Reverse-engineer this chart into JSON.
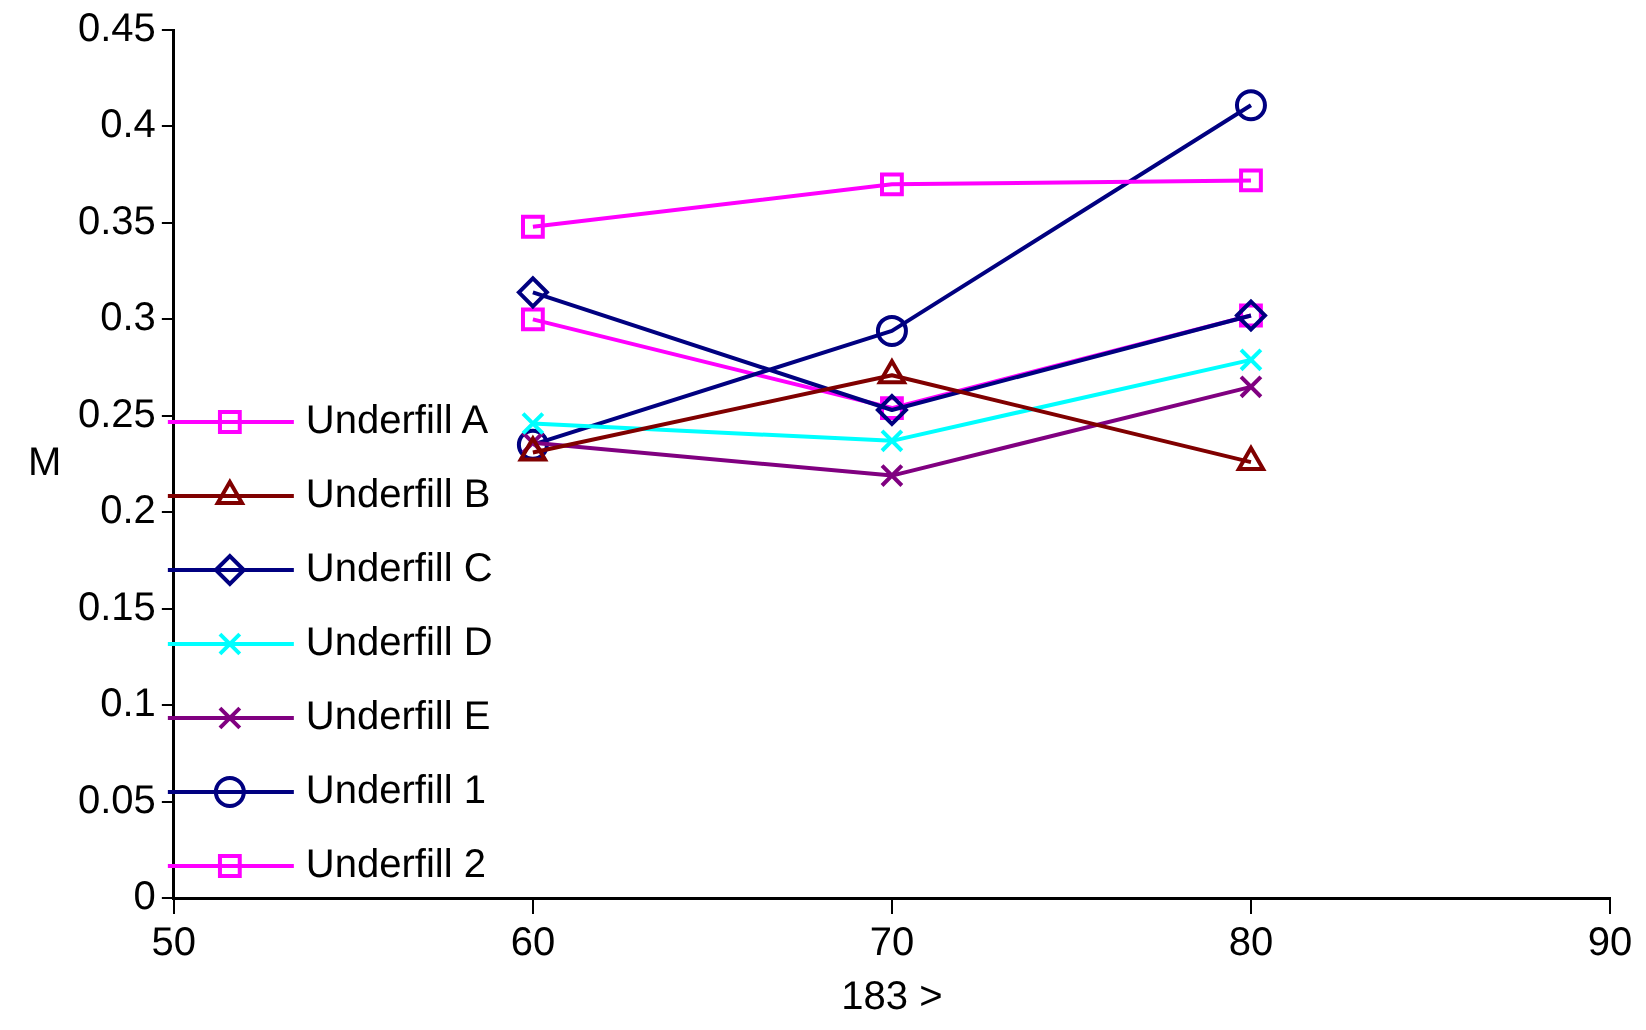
{
  "chart_data": {
    "type": "line",
    "xlabel": "183 >",
    "ylabel": "M",
    "x": [
      60,
      70,
      80
    ],
    "xlim": [
      50,
      90
    ],
    "xticks": [
      50,
      60,
      70,
      80,
      90
    ],
    "ylim": [
      0,
      0.45
    ],
    "yticks": [
      0,
      0.05,
      0.1,
      0.15,
      0.2,
      0.25,
      0.3,
      0.35,
      0.4,
      0.45
    ],
    "grid": false,
    "legend": "left",
    "line_style": "solid",
    "series": [
      {
        "name": "Underfill A",
        "color": "#ff00ff",
        "marker": "square",
        "values": [
          0.348,
          0.37,
          0.372
        ]
      },
      {
        "name": "Underfill B",
        "color": "#800000",
        "marker": "triangle",
        "values": [
          0.231,
          0.271,
          0.226
        ]
      },
      {
        "name": "Underfill C",
        "color": "#000080",
        "marker": "diamond",
        "values": [
          0.314,
          0.253,
          0.302
        ]
      },
      {
        "name": "Underfill D",
        "color": "#00ffff",
        "marker": "cross",
        "values": [
          0.246,
          0.237,
          0.279
        ]
      },
      {
        "name": "Underfill E",
        "color": "#800080",
        "marker": "cross",
        "values": [
          0.236,
          0.219,
          0.265
        ]
      },
      {
        "name": "Underfill 1",
        "color": "#000080",
        "marker": "circle",
        "values": [
          0.235,
          0.294,
          0.411
        ]
      },
      {
        "name": "Underfill 2",
        "color": "#ff00ff",
        "marker": "square",
        "values": [
          0.3,
          0.254,
          0.302
        ]
      }
    ]
  }
}
